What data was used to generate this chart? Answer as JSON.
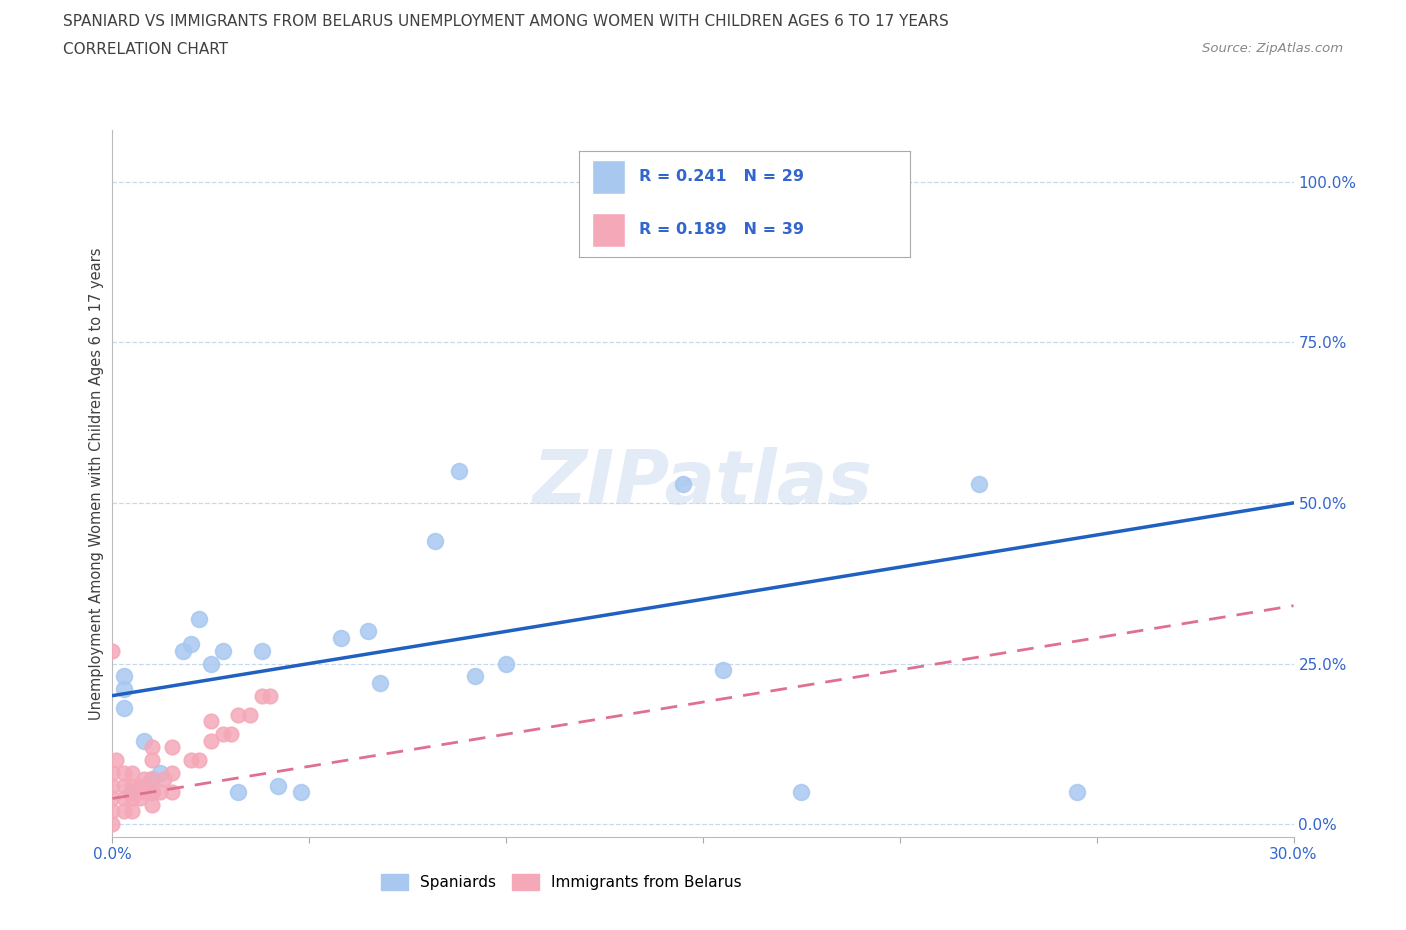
{
  "title1": "SPANIARD VS IMMIGRANTS FROM BELARUS UNEMPLOYMENT AMONG WOMEN WITH CHILDREN AGES 6 TO 17 YEARS",
  "title2": "CORRELATION CHART",
  "source": "Source: ZipAtlas.com",
  "ylabel": "Unemployment Among Women with Children Ages 6 to 17 years",
  "xlim": [
    0.0,
    0.3
  ],
  "ylim": [
    -0.02,
    1.08
  ],
  "ytick_labels": [
    "0.0%",
    "25.0%",
    "50.0%",
    "75.0%",
    "100.0%"
  ],
  "ytick_vals": [
    0.0,
    0.25,
    0.5,
    0.75,
    1.0
  ],
  "xtick_vals": [
    0.0,
    0.05,
    0.1,
    0.15,
    0.2,
    0.25,
    0.3
  ],
  "xtick_labels": [
    "0.0%",
    "",
    "",
    "",
    "",
    "",
    "30.0%"
  ],
  "r_spaniard": 0.241,
  "n_spaniard": 29,
  "r_belarus": 0.189,
  "n_belarus": 39,
  "spaniard_color": "#a8c8f0",
  "belarus_color": "#f4a8b8",
  "spaniard_line_color": "#2060c0",
  "belarus_line_color": "#e07090",
  "watermark": "ZIPatlas",
  "spaniard_x": [
    0.003,
    0.003,
    0.003,
    0.005,
    0.008,
    0.01,
    0.01,
    0.012,
    0.018,
    0.02,
    0.022,
    0.025,
    0.028,
    0.032,
    0.038,
    0.042,
    0.048,
    0.058,
    0.065,
    0.068,
    0.082,
    0.088,
    0.092,
    0.1,
    0.145,
    0.155,
    0.175,
    0.22,
    0.245
  ],
  "spaniard_y": [
    0.18,
    0.21,
    0.23,
    0.05,
    0.13,
    0.05,
    0.07,
    0.08,
    0.27,
    0.28,
    0.32,
    0.25,
    0.27,
    0.05,
    0.27,
    0.06,
    0.05,
    0.29,
    0.3,
    0.22,
    0.44,
    0.55,
    0.23,
    0.25,
    0.53,
    0.24,
    0.05,
    0.53,
    0.05
  ],
  "belarus_x": [
    0.0,
    0.0,
    0.0,
    0.0,
    0.0,
    0.0,
    0.001,
    0.003,
    0.003,
    0.003,
    0.003,
    0.005,
    0.005,
    0.005,
    0.005,
    0.007,
    0.007,
    0.008,
    0.008,
    0.01,
    0.01,
    0.01,
    0.01,
    0.01,
    0.012,
    0.013,
    0.015,
    0.015,
    0.015,
    0.02,
    0.022,
    0.025,
    0.025,
    0.028,
    0.03,
    0.032,
    0.035,
    0.038,
    0.04
  ],
  "belarus_y": [
    0.0,
    0.02,
    0.04,
    0.06,
    0.08,
    0.27,
    0.1,
    0.02,
    0.04,
    0.06,
    0.08,
    0.02,
    0.04,
    0.06,
    0.08,
    0.04,
    0.06,
    0.05,
    0.07,
    0.03,
    0.05,
    0.07,
    0.1,
    0.12,
    0.05,
    0.07,
    0.05,
    0.08,
    0.12,
    0.1,
    0.1,
    0.13,
    0.16,
    0.14,
    0.14,
    0.17,
    0.17,
    0.2,
    0.2
  ]
}
